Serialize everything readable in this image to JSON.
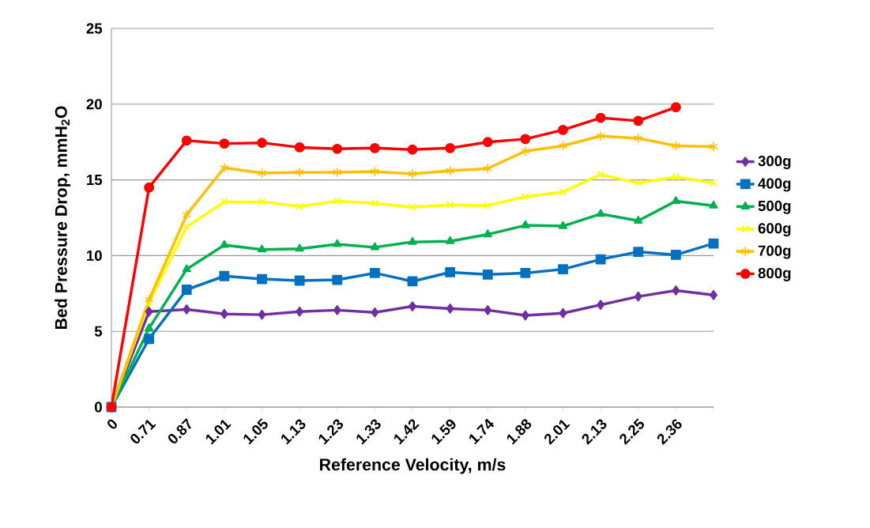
{
  "chart_data": {
    "type": "line",
    "xlabel": "Reference Velocity, m/s",
    "ylabel": "Bed Pressure Drop, mmH$_{2}$O",
    "categories": [
      "0",
      "0.71",
      "0.87",
      "1.01",
      "1.05",
      "1.13",
      "1.23",
      "1.33",
      "1.42",
      "1.59",
      "1.74",
      "1.88",
      "2.01",
      "2.13",
      "2.25",
      "2.36",
      null
    ],
    "ylim": [
      0,
      25
    ],
    "yticks": [
      0,
      5,
      10,
      15,
      20,
      25
    ],
    "grid": "y",
    "legend": "right",
    "series": [
      {
        "name": "300g",
        "color": "#7030a0",
        "marker": "diamond",
        "values": [
          0,
          6.3,
          6.45,
          6.15,
          6.1,
          6.3,
          6.4,
          6.25,
          6.65,
          6.5,
          6.4,
          6.05,
          6.2,
          6.75,
          7.3,
          7.7,
          7.4
        ]
      },
      {
        "name": "400g",
        "color": "#0070c0",
        "marker": "square",
        "values": [
          0,
          4.5,
          7.75,
          8.65,
          8.45,
          8.35,
          8.4,
          8.85,
          8.3,
          8.9,
          8.75,
          8.85,
          9.1,
          9.75,
          10.25,
          10.05,
          10.8
        ]
      },
      {
        "name": "500g",
        "color": "#00b050",
        "marker": "triangle",
        "values": [
          0,
          5.2,
          9.1,
          10.7,
          10.4,
          10.45,
          10.75,
          10.55,
          10.9,
          10.95,
          11.4,
          12.0,
          11.95,
          12.75,
          12.3,
          13.6,
          13.3
        ]
      },
      {
        "name": "600g",
        "color": "#ffff00",
        "marker": "cross",
        "values": [
          0,
          6.9,
          11.9,
          13.55,
          13.55,
          13.25,
          13.6,
          13.45,
          13.2,
          13.35,
          13.3,
          13.9,
          14.2,
          15.35,
          14.8,
          15.2,
          14.8
        ]
      },
      {
        "name": "700g",
        "color": "#ffc000",
        "marker": "cross",
        "values": [
          0,
          7.1,
          12.7,
          15.8,
          15.45,
          15.5,
          15.5,
          15.55,
          15.4,
          15.6,
          15.75,
          16.9,
          17.25,
          17.9,
          17.75,
          17.25,
          17.2
        ]
      },
      {
        "name": "800g",
        "color": "#ff0000",
        "marker": "circle",
        "values": [
          0,
          14.5,
          17.6,
          17.4,
          17.45,
          17.15,
          17.05,
          17.1,
          17.0,
          17.1,
          17.5,
          17.7,
          18.3,
          19.1,
          18.9,
          19.8,
          null
        ]
      }
    ]
  }
}
